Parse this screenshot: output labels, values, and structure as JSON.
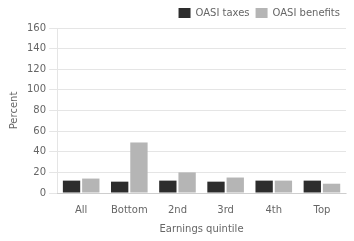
{
  "chart_data": {
    "type": "bar",
    "categories": [
      "All",
      "Bottom",
      "2nd",
      "3rd",
      "4th",
      "Top"
    ],
    "series": [
      {
        "name": "OASI taxes",
        "color": "#2d2d2d",
        "values": [
          12,
          11,
          12,
          11,
          12,
          12
        ]
      },
      {
        "name": "OASI benefits",
        "color": "#b5b5b5",
        "values": [
          14,
          49,
          20,
          15,
          12,
          9
        ]
      }
    ],
    "xlabel": "Earnings quintile",
    "ylabel": "Percent",
    "ylim": [
      0,
      160
    ],
    "yticks": [
      0,
      20,
      40,
      60,
      80,
      100,
      120,
      140,
      160
    ],
    "grid": "y",
    "legend": "upper right"
  }
}
